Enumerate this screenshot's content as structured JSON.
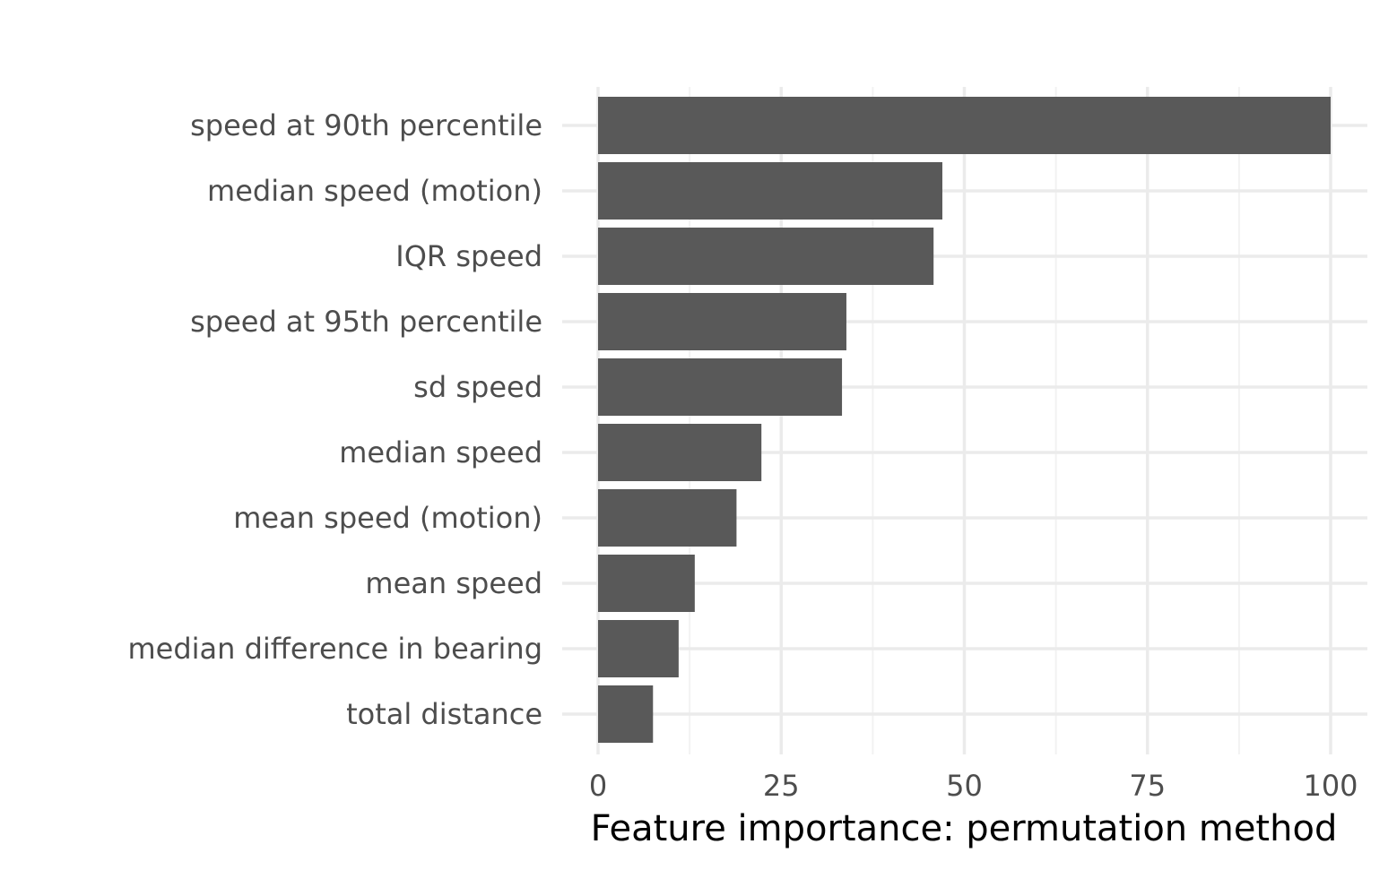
{
  "chart_data": {
    "type": "bar",
    "orientation": "horizontal",
    "categories": [
      "speed at 90th percentile",
      "median speed (motion)",
      "IQR speed",
      "speed at 95th percentile",
      "sd speed",
      "median speed",
      "mean speed (motion)",
      "mean speed",
      "median difference in bearing",
      "total distance"
    ],
    "values": [
      100,
      47,
      45.8,
      33.9,
      33.3,
      22.3,
      18.9,
      13.2,
      11,
      7.5
    ],
    "title": "",
    "xlabel": "Feature importance: permutation method",
    "ylabel": "",
    "xlim": [
      0,
      100
    ],
    "xticks": [
      0,
      25,
      50,
      75,
      100
    ],
    "grid": true,
    "legend": "none",
    "colors": {
      "bar": "#595959",
      "grid_major": "#ebebeb",
      "grid_minor": "#f2f2f2",
      "tick_text": "#4d4d4d",
      "title_text": "#000000",
      "background": "#ffffff"
    }
  }
}
